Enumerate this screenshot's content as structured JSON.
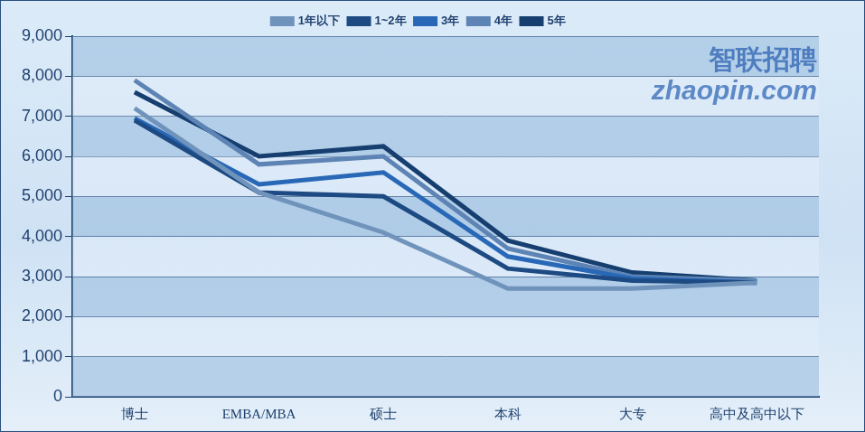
{
  "chart_data": {
    "type": "line",
    "annotations": [
      "智联招聘",
      "zhaopin.com"
    ],
    "categories": [
      "博士",
      "EMBA/MBA",
      "硕士",
      "本科",
      "大专",
      "高中及高中以下"
    ],
    "series": [
      {
        "name": "1年以下",
        "color": "#7093bb",
        "values": [
          7200,
          5100,
          4100,
          2700,
          2700,
          2850
        ]
      },
      {
        "name": "1~2年",
        "color": "#1d4a82",
        "values": [
          6900,
          5100,
          5000,
          3200,
          2900,
          2850
        ]
      },
      {
        "name": "3年",
        "color": "#2868b6",
        "values": [
          6950,
          5300,
          5600,
          3500,
          2950,
          2850
        ]
      },
      {
        "name": "4年",
        "color": "#5d84b4",
        "values": [
          7900,
          5800,
          6000,
          3700,
          3000,
          2900
        ]
      },
      {
        "name": "5年",
        "color": "#163f70",
        "values": [
          7600,
          6000,
          6250,
          3900,
          3100,
          2900
        ]
      }
    ],
    "ylim": [
      0,
      9000
    ],
    "yticks": [
      0,
      1000,
      2000,
      3000,
      4000,
      5000,
      6000,
      7000,
      8000,
      9000
    ],
    "grid": true,
    "legend": "top"
  }
}
